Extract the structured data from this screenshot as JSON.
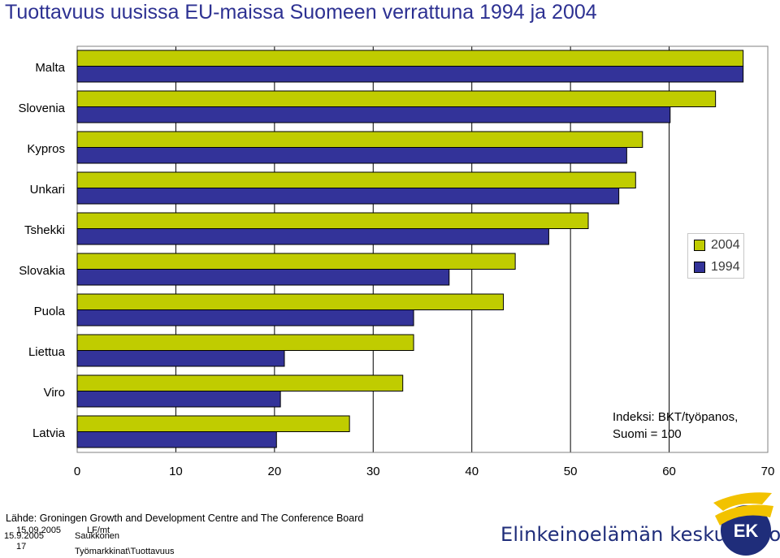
{
  "title": "Tuottavuus uusissa EU-maissa Suomeen verrattuna 1994 ja 2004",
  "chart_data": {
    "type": "bar",
    "orientation": "horizontal",
    "categories": [
      "Malta",
      "Slovenia",
      "Kypros",
      "Unkari",
      "Tshekki",
      "Slovakia",
      "Puola",
      "Liettua",
      "Viro",
      "Latvia"
    ],
    "series": [
      {
        "name": "2004",
        "color": "#c0cc00",
        "values": [
          67.5,
          64.7,
          57.3,
          56.6,
          51.8,
          44.4,
          43.2,
          34.1,
          33.0,
          27.6
        ]
      },
      {
        "name": "1994",
        "color": "#333399",
        "values": [
          67.5,
          60.1,
          55.7,
          54.9,
          47.8,
          37.7,
          34.1,
          21.0,
          20.6,
          20.2
        ]
      }
    ],
    "xlim": [
      0,
      70
    ],
    "xticks": [
      "0",
      "10",
      "20",
      "30",
      "40",
      "50",
      "60",
      "70"
    ],
    "grid": true,
    "legend_position": "right"
  },
  "annotation": {
    "line1": "Indeksi: BKT/työpanos,",
    "line2": "Suomi = 100"
  },
  "footer": {
    "source": "Lähde: Groningen Growth and Development Centre and The Conference Board",
    "date1": "15.09.2005",
    "initials": "LF/mt",
    "date2": "15.9.2005",
    "author": "Saukkonen",
    "page": "17",
    "path": "Työmarkkinat\\Tuottavuus",
    "org": "Elinkeinoelämän keskusliitto",
    "logo_letters": "EK"
  }
}
